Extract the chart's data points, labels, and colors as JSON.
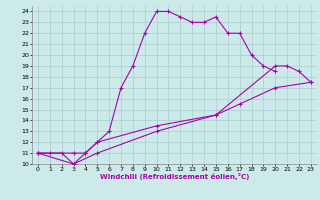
{
  "xlabel": "Windchill (Refroidissement éolien,°C)",
  "bg_color": "#cceaea",
  "line_color": "#aa00aa",
  "grid_color": "#aacccc",
  "xlim": [
    -0.5,
    23.5
  ],
  "ylim": [
    10,
    24.5
  ],
  "xticks": [
    0,
    1,
    2,
    3,
    4,
    5,
    6,
    7,
    8,
    9,
    10,
    11,
    12,
    13,
    14,
    15,
    16,
    17,
    18,
    19,
    20,
    21,
    22,
    23
  ],
  "yticks": [
    10,
    11,
    12,
    13,
    14,
    15,
    16,
    17,
    18,
    19,
    20,
    21,
    22,
    23,
    24
  ],
  "line1_x": [
    0,
    1,
    2,
    3,
    4,
    5,
    6,
    7,
    8,
    9,
    10,
    11,
    12,
    13,
    14,
    15,
    16,
    17,
    18,
    19,
    20
  ],
  "line1_y": [
    11,
    11,
    11,
    10,
    11,
    12,
    13,
    17,
    19,
    22,
    24,
    24,
    23.5,
    23,
    23,
    23.5,
    22,
    22,
    20,
    19,
    18.5
  ],
  "line2_x": [
    0,
    3,
    5,
    10,
    15,
    20,
    21,
    22,
    23
  ],
  "line2_y": [
    11,
    10,
    11,
    13,
    14.5,
    19,
    19,
    18.5,
    17.5
  ],
  "line3_x": [
    0,
    3,
    4,
    5,
    10,
    15,
    17,
    20,
    23
  ],
  "line3_y": [
    11,
    11,
    11,
    12,
    13.5,
    14.5,
    15.5,
    17,
    17.5
  ]
}
